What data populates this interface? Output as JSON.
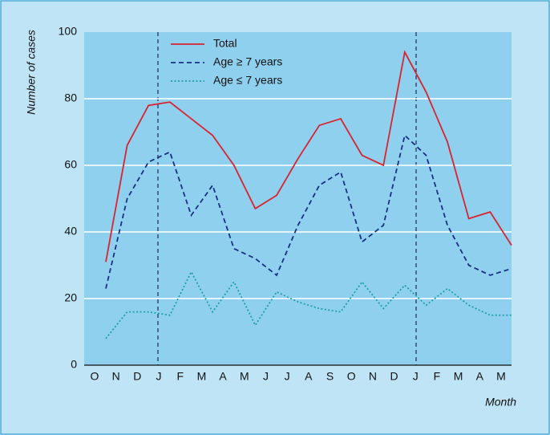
{
  "chart_data": {
    "type": "line",
    "y_label": "Number of cases",
    "x_label": "Month",
    "categories": [
      "O",
      "N",
      "D",
      "J",
      "F",
      "M",
      "A",
      "M",
      "J",
      "J",
      "A",
      "S",
      "O",
      "N",
      "D",
      "J",
      "F",
      "M",
      "A",
      "M"
    ],
    "series": [
      {
        "name": "Total",
        "color": "#d9232f",
        "style": "solid",
        "values": [
          31,
          66,
          78,
          79,
          74,
          69,
          60,
          47,
          51,
          62,
          72,
          74,
          63,
          60,
          94,
          82,
          67,
          44,
          46,
          36
        ]
      },
      {
        "name": "Age ≥ 7 years",
        "color": "#1b2f86",
        "style": "dashed",
        "values": [
          23,
          50,
          61,
          64,
          45,
          54,
          35,
          32,
          27,
          42,
          54,
          58,
          37,
          42,
          69,
          63,
          42,
          30,
          27,
          29
        ]
      },
      {
        "name": "Age ≤ 7 years",
        "color": "#1aa0a8",
        "style": "dotted",
        "values": [
          8,
          16,
          16,
          15,
          28,
          16,
          25,
          12,
          22,
          19,
          17,
          16,
          25,
          17,
          24,
          18,
          23,
          18,
          15,
          15
        ]
      }
    ],
    "ylim": [
      0,
      100
    ],
    "yticks": [
      0,
      20,
      40,
      60,
      80,
      100
    ],
    "grid": true
  }
}
